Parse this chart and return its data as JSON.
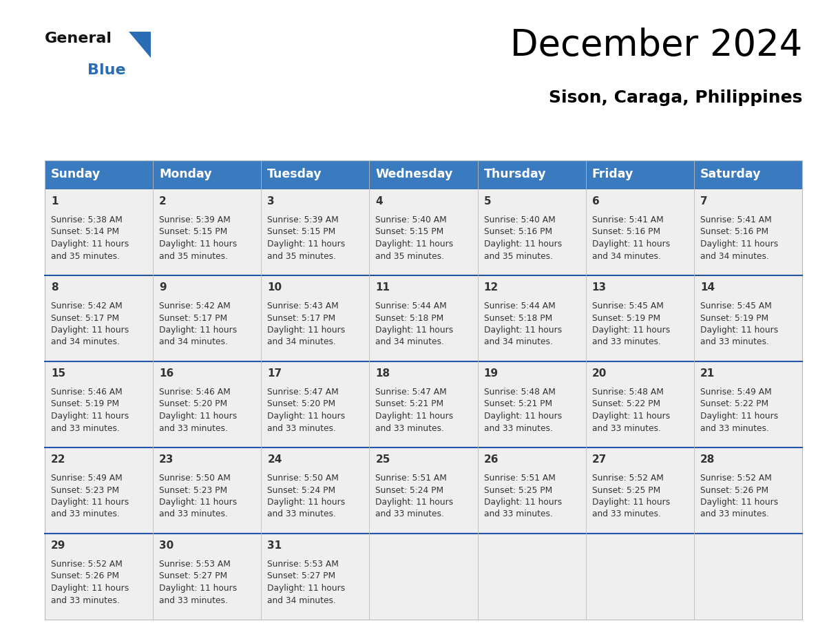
{
  "title": "December 2024",
  "subtitle": "Sison, Caraga, Philippines",
  "days_of_week": [
    "Sunday",
    "Monday",
    "Tuesday",
    "Wednesday",
    "Thursday",
    "Friday",
    "Saturday"
  ],
  "header_bg": "#3a7abf",
  "header_text": "#ffffff",
  "cell_bg": "#efefef",
  "divider_color": "#2255aa",
  "text_color": "#333333",
  "calendar": [
    [
      {
        "day": 1,
        "sunrise": "5:38 AM",
        "sunset": "5:14 PM",
        "daylight": "11 hours and 35 minutes."
      },
      {
        "day": 2,
        "sunrise": "5:39 AM",
        "sunset": "5:15 PM",
        "daylight": "11 hours and 35 minutes."
      },
      {
        "day": 3,
        "sunrise": "5:39 AM",
        "sunset": "5:15 PM",
        "daylight": "11 hours and 35 minutes."
      },
      {
        "day": 4,
        "sunrise": "5:40 AM",
        "sunset": "5:15 PM",
        "daylight": "11 hours and 35 minutes."
      },
      {
        "day": 5,
        "sunrise": "5:40 AM",
        "sunset": "5:16 PM",
        "daylight": "11 hours and 35 minutes."
      },
      {
        "day": 6,
        "sunrise": "5:41 AM",
        "sunset": "5:16 PM",
        "daylight": "11 hours and 34 minutes."
      },
      {
        "day": 7,
        "sunrise": "5:41 AM",
        "sunset": "5:16 PM",
        "daylight": "11 hours and 34 minutes."
      }
    ],
    [
      {
        "day": 8,
        "sunrise": "5:42 AM",
        "sunset": "5:17 PM",
        "daylight": "11 hours and 34 minutes."
      },
      {
        "day": 9,
        "sunrise": "5:42 AM",
        "sunset": "5:17 PM",
        "daylight": "11 hours and 34 minutes."
      },
      {
        "day": 10,
        "sunrise": "5:43 AM",
        "sunset": "5:17 PM",
        "daylight": "11 hours and 34 minutes."
      },
      {
        "day": 11,
        "sunrise": "5:44 AM",
        "sunset": "5:18 PM",
        "daylight": "11 hours and 34 minutes."
      },
      {
        "day": 12,
        "sunrise": "5:44 AM",
        "sunset": "5:18 PM",
        "daylight": "11 hours and 34 minutes."
      },
      {
        "day": 13,
        "sunrise": "5:45 AM",
        "sunset": "5:19 PM",
        "daylight": "11 hours and 33 minutes."
      },
      {
        "day": 14,
        "sunrise": "5:45 AM",
        "sunset": "5:19 PM",
        "daylight": "11 hours and 33 minutes."
      }
    ],
    [
      {
        "day": 15,
        "sunrise": "5:46 AM",
        "sunset": "5:19 PM",
        "daylight": "11 hours and 33 minutes."
      },
      {
        "day": 16,
        "sunrise": "5:46 AM",
        "sunset": "5:20 PM",
        "daylight": "11 hours and 33 minutes."
      },
      {
        "day": 17,
        "sunrise": "5:47 AM",
        "sunset": "5:20 PM",
        "daylight": "11 hours and 33 minutes."
      },
      {
        "day": 18,
        "sunrise": "5:47 AM",
        "sunset": "5:21 PM",
        "daylight": "11 hours and 33 minutes."
      },
      {
        "day": 19,
        "sunrise": "5:48 AM",
        "sunset": "5:21 PM",
        "daylight": "11 hours and 33 minutes."
      },
      {
        "day": 20,
        "sunrise": "5:48 AM",
        "sunset": "5:22 PM",
        "daylight": "11 hours and 33 minutes."
      },
      {
        "day": 21,
        "sunrise": "5:49 AM",
        "sunset": "5:22 PM",
        "daylight": "11 hours and 33 minutes."
      }
    ],
    [
      {
        "day": 22,
        "sunrise": "5:49 AM",
        "sunset": "5:23 PM",
        "daylight": "11 hours and 33 minutes."
      },
      {
        "day": 23,
        "sunrise": "5:50 AM",
        "sunset": "5:23 PM",
        "daylight": "11 hours and 33 minutes."
      },
      {
        "day": 24,
        "sunrise": "5:50 AM",
        "sunset": "5:24 PM",
        "daylight": "11 hours and 33 minutes."
      },
      {
        "day": 25,
        "sunrise": "5:51 AM",
        "sunset": "5:24 PM",
        "daylight": "11 hours and 33 minutes."
      },
      {
        "day": 26,
        "sunrise": "5:51 AM",
        "sunset": "5:25 PM",
        "daylight": "11 hours and 33 minutes."
      },
      {
        "day": 27,
        "sunrise": "5:52 AM",
        "sunset": "5:25 PM",
        "daylight": "11 hours and 33 minutes."
      },
      {
        "day": 28,
        "sunrise": "5:52 AM",
        "sunset": "5:26 PM",
        "daylight": "11 hours and 33 minutes."
      }
    ],
    [
      {
        "day": 29,
        "sunrise": "5:52 AM",
        "sunset": "5:26 PM",
        "daylight": "11 hours and 33 minutes."
      },
      {
        "day": 30,
        "sunrise": "5:53 AM",
        "sunset": "5:27 PM",
        "daylight": "11 hours and 33 minutes."
      },
      {
        "day": 31,
        "sunrise": "5:53 AM",
        "sunset": "5:27 PM",
        "daylight": "11 hours and 34 minutes."
      },
      null,
      null,
      null,
      null
    ]
  ]
}
